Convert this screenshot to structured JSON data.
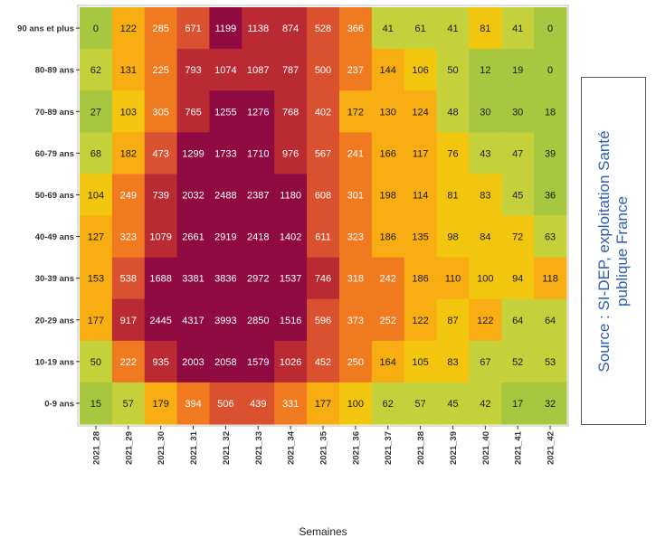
{
  "chart_data": {
    "type": "heatmap",
    "xlabel": "Semaines",
    "ylabel": "",
    "x_categories": [
      "2021_28",
      "2021_29",
      "2021_30",
      "2021_31",
      "2021_32",
      "2021_33",
      "2021_34",
      "2021_35",
      "2021_36",
      "2021_37",
      "2021_38",
      "2021_39",
      "2021_40",
      "2021_41",
      "2021_42"
    ],
    "y_categories": [
      "90 ans et plus",
      "80-89 ans",
      "70-89 ans",
      "60-79 ans",
      "50-69 ans",
      "40-49 ans",
      "30-39 ans",
      "20-29 ans",
      "10-19 ans",
      "0-9 ans"
    ],
    "values": [
      [
        0,
        122,
        285,
        671,
        1199,
        1138,
        874,
        528,
        366,
        41,
        61,
        41,
        81,
        41,
        0
      ],
      [
        62,
        131,
        225,
        793,
        1074,
        1087,
        787,
        500,
        237,
        144,
        106,
        50,
        12,
        19,
        0
      ],
      [
        27,
        103,
        305,
        765,
        1255,
        1276,
        768,
        402,
        172,
        130,
        124,
        48,
        30,
        30,
        18
      ],
      [
        68,
        182,
        473,
        1299,
        1733,
        1710,
        976,
        567,
        241,
        166,
        117,
        76,
        43,
        47,
        39
      ],
      [
        104,
        249,
        739,
        2032,
        2488,
        2387,
        1180,
        608,
        301,
        198,
        114,
        81,
        83,
        45,
        36
      ],
      [
        127,
        323,
        1079,
        2661,
        2919,
        2418,
        1402,
        611,
        323,
        186,
        135,
        98,
        84,
        72,
        63
      ],
      [
        153,
        538,
        1688,
        3381,
        3836,
        2972,
        1537,
        746,
        318,
        242,
        186,
        110,
        100,
        94,
        118
      ],
      [
        177,
        917,
        2445,
        4317,
        3993,
        2850,
        1516,
        596,
        373,
        252,
        122,
        87,
        122,
        64,
        64
      ],
      [
        50,
        222,
        935,
        2003,
        2058,
        1579,
        1026,
        452,
        250,
        164,
        105,
        83,
        67,
        52,
        53
      ],
      [
        15,
        57,
        179,
        394,
        506,
        439,
        331,
        177,
        100,
        62,
        57,
        45,
        42,
        17,
        32
      ]
    ],
    "color_scale": [
      "#a6c73f",
      "#c4d13a",
      "#f2c50e",
      "#f8ad12",
      "#ef7a1f",
      "#d9512e",
      "#b92a33",
      "#8e0a40"
    ],
    "grid": false,
    "legend": "none"
  },
  "source": {
    "line1": "Source : SI-DEP, exploitation Santé",
    "line2": "publique France"
  }
}
